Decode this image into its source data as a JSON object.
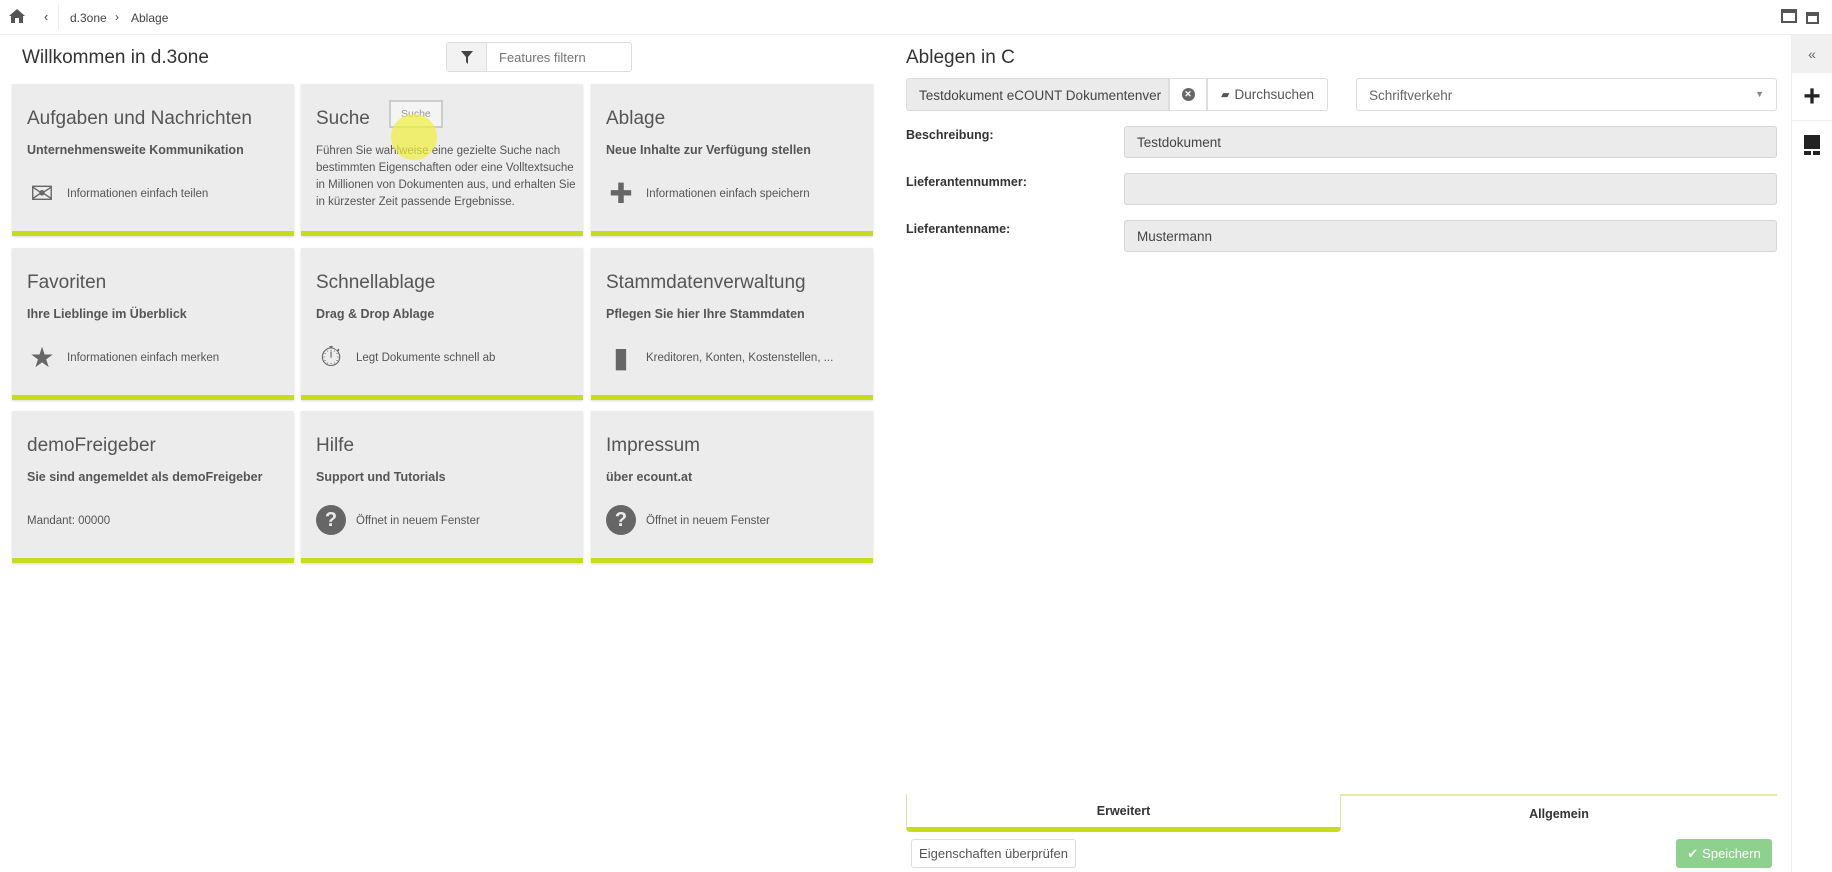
{
  "breadcrumb": {
    "items": [
      "d.3one",
      "Ablage"
    ],
    "home_icon": "home-icon",
    "back_icon": "chevron-left-icon"
  },
  "left": {
    "title": "Willkommen in d.3one",
    "filter": {
      "placeholder": "Features filtern",
      "icon": "filter-icon"
    },
    "tooltip": "Suche",
    "cards": [
      {
        "title": "Aufgaben und Nachrichten",
        "subtitle": "Unternehmensweite Kommunikation",
        "icon": "envelope-icon",
        "glyph": "✉",
        "label": "Informationen einfach teilen"
      },
      {
        "title": "Suche",
        "description": "Führen Sie wahlweise eine gezielte Suche nach bestimmten Eigenschaften oder eine Volltextsuche in Millionen von Dokumenten aus, und erhalten Sie in kürzester Zeit passende Ergebnisse."
      },
      {
        "title": "Ablage",
        "subtitle": "Neue Inhalte zur Verfügung stellen",
        "icon": "plus-icon",
        "glyph": "✚",
        "label": "Informationen einfach speichern"
      },
      {
        "title": "Favoriten",
        "subtitle": "Ihre Lieblinge im Überblick",
        "icon": "star-icon",
        "glyph": "★",
        "label": "Informationen einfach merken"
      },
      {
        "title": "Schnellablage",
        "subtitle": "Drag & Drop Ablage",
        "icon": "stopwatch-icon",
        "glyph": "⏱",
        "label": "Legt Dokumente schnell ab"
      },
      {
        "title": "Stammdatenverwaltung",
        "subtitle": "Pflegen Sie hier Ihre Stammdaten",
        "icon": "binder-icon",
        "glyph": "▮",
        "label": "Kreditoren, Konten, Kostenstellen, ..."
      },
      {
        "title": "demoFreigeber",
        "subtitle": "Sie sind angemeldet als demoFreigeber",
        "label": "Mandant: 00000"
      },
      {
        "title": "Hilfe",
        "subtitle": "Support und Tutorials",
        "icon": "question-circle-icon",
        "glyph": "?",
        "label": "Öffnet in neuem Fenster"
      },
      {
        "title": "Impressum",
        "subtitle": "über ecount.at",
        "icon": "question-circle-icon",
        "glyph": "?",
        "label": "Öffnet in neuem Fenster"
      }
    ]
  },
  "right": {
    "title": "Ablegen in C",
    "document": "Testdokument eCOUNT Dokumentenver",
    "browse_label": "Durchsuchen",
    "category": "Schriftverkehr",
    "fields": [
      {
        "label": "Beschreibung:",
        "value": "Testdokument"
      },
      {
        "label": "Lieferantennummer:",
        "value": ""
      },
      {
        "label": "Lieferantenname:",
        "value": "Mustermann"
      }
    ],
    "tabs": [
      "Erweitert",
      "Allgemein"
    ],
    "active_tab": "Erweitert",
    "check_label": "Eigenschaften überprüfen",
    "save_label": "Speichern"
  },
  "sidebar": {
    "collapse": "«",
    "add": "+"
  },
  "colors": {
    "accent": "#c6dc1c",
    "save": "#8ed08e",
    "card": "#edecec"
  }
}
